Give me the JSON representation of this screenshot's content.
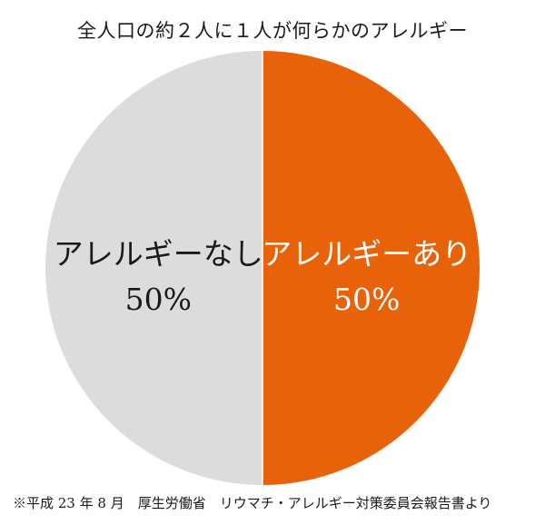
{
  "chart_data": {
    "type": "pie",
    "title": "全人口の約２人に１人が何らかのアレルギー",
    "slices": [
      {
        "label": "アレルギーあり",
        "value_label": "50%",
        "value": 50,
        "color": "#E8620A",
        "text_color": "#ffffff"
      },
      {
        "label": "アレルギーなし",
        "value_label": "50%",
        "value": 50,
        "color": "#DCDCDC",
        "text_color": "#1a1a1a"
      }
    ],
    "start": "12 o'clock",
    "direction": "clockwise",
    "legend": "none"
  },
  "source_note": "※平成 23 年 8 月　厚生労働省　リウマチ・アレルギー対策委員会報告書より"
}
